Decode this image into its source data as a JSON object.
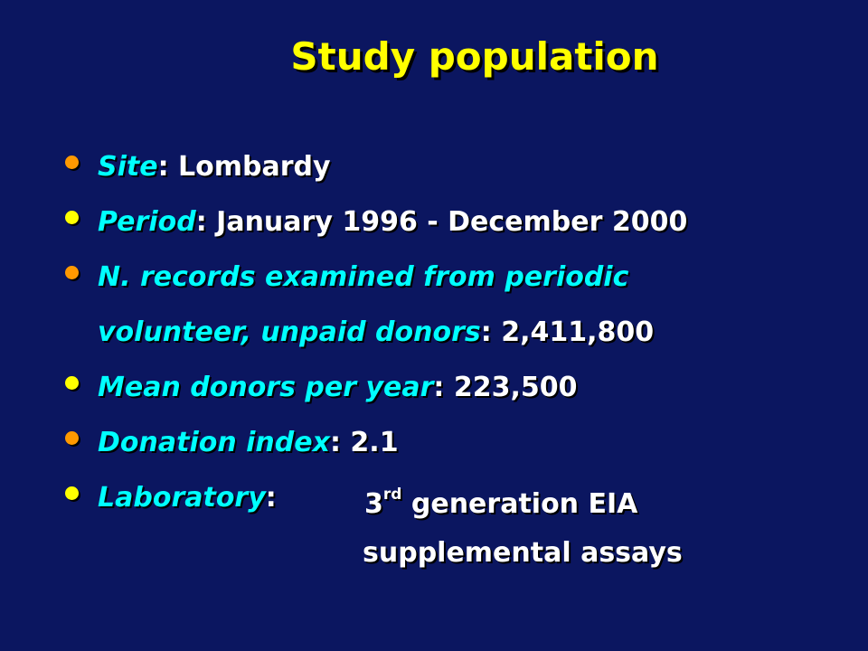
{
  "title": "Study population",
  "colors": {
    "background": "#0b1660",
    "title": "#ffff00",
    "term": "#00ffff",
    "value": "#ffffff",
    "bullet_orange": "#ff9900",
    "bullet_yellow": "#ffff00"
  },
  "bullets": [
    {
      "term": "Site",
      "sep": ": ",
      "value": "Lombardy",
      "bullet_color": "orange"
    },
    {
      "term": "Period",
      "sep": ": ",
      "value": "January 1996 - December 2000",
      "bullet_color": "yellow"
    },
    {
      "term": "N. records examined from periodic",
      "term_cont": "volunteer, unpaid donors",
      "sep": ": ",
      "value": "2,411,800",
      "bullet_color": "orange"
    },
    {
      "term": "Mean donors per year",
      "sep": ": ",
      "value": "223,500",
      "bullet_color": "yellow"
    },
    {
      "term": "Donation index",
      "sep": ": ",
      "value": "2.1",
      "bullet_color": "orange"
    },
    {
      "term": "Laboratory",
      "sep": ":",
      "value_pre": "3",
      "value_sup": "rd",
      "value_post": " generation EIA",
      "value_line2": "supplemental assays",
      "bullet_color": "yellow"
    }
  ]
}
